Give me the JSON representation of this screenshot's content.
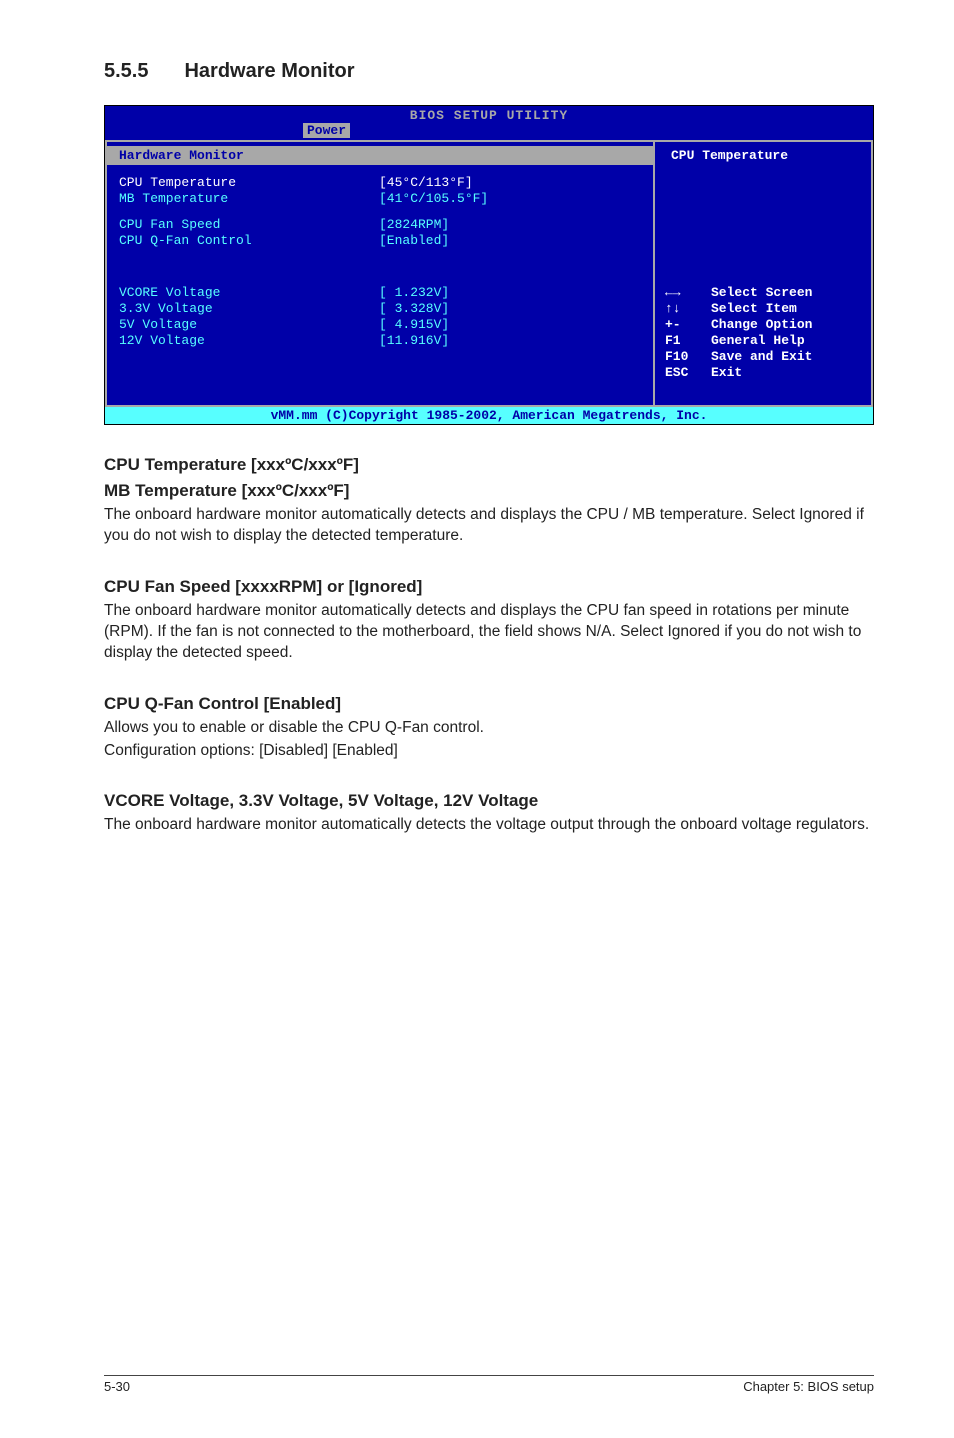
{
  "heading": {
    "num": "5.5.5",
    "title": "Hardware Monitor"
  },
  "bios": {
    "headerTitle": "BIOS SETUP UTILITY",
    "tabActive": "Power",
    "panelTitle": "Hardware Monitor",
    "rows": [
      {
        "label": "CPU Temperature",
        "value": "[45°C/113°F]",
        "selected": true
      },
      {
        "label": "MB Temperature",
        "value": "[41°C/105.5°F]",
        "selected": false,
        "gapAfter": true
      },
      {
        "label": "CPU Fan Speed",
        "value": "[2824RPM]",
        "selected": false
      },
      {
        "label": "CPU Q-Fan Control",
        "value": "[Enabled]",
        "selected": false,
        "gapAfter": "big"
      },
      {
        "label": "VCORE Voltage",
        "value": "[ 1.232V]",
        "selected": false
      },
      {
        "label": "3.3V Voltage",
        "value": "[ 3.328V]",
        "selected": false
      },
      {
        "label": "5V Voltage",
        "value": "[ 4.915V]",
        "selected": false
      },
      {
        "label": "12V Voltage",
        "value": "[11.916V]",
        "selected": false
      }
    ],
    "helpTitle": "CPU Temperature",
    "keys": [
      {
        "sym": "←→",
        "desc": "Select Screen"
      },
      {
        "sym": "↑↓",
        "desc": "Select Item"
      },
      {
        "sym": "+-",
        "desc": "Change Option"
      },
      {
        "sym": "F1",
        "desc": "General Help"
      },
      {
        "sym": "F10",
        "desc": "Save and Exit"
      },
      {
        "sym": "ESC",
        "desc": "Exit"
      }
    ],
    "footer": "vMM.mm (C)Copyright 1985-2002, American Megatrends, Inc."
  },
  "doc": {
    "h1": "CPU Temperature [xxxºC/xxxºF]",
    "h2": "MB Temperature [xxxºC/xxxºF]",
    "p1": "The onboard hardware monitor automatically detects and displays the CPU / MB temperature. Select Ignored if you do not wish to display the detected temperature.",
    "h3": "CPU Fan Speed [xxxxRPM] or [Ignored]",
    "p2": "The onboard hardware monitor automatically detects and displays the CPU fan speed in rotations per minute (RPM). If the fan is not connected to the motherboard, the field shows N/A. Select Ignored if you do not wish to display the detected speed.",
    "h4": "CPU Q-Fan Control [Enabled]",
    "p3a": "Allows you to enable or disable the CPU Q-Fan control.",
    "p3b": "Configuration options: [Disabled] [Enabled]",
    "h5": "VCORE Voltage, 3.3V Voltage, 5V Voltage, 12V Voltage",
    "p4": "The onboard hardware monitor automatically detects the voltage output through the onboard voltage regulators."
  },
  "footer": {
    "left": "5-30",
    "right": "Chapter 5: BIOS setup"
  }
}
